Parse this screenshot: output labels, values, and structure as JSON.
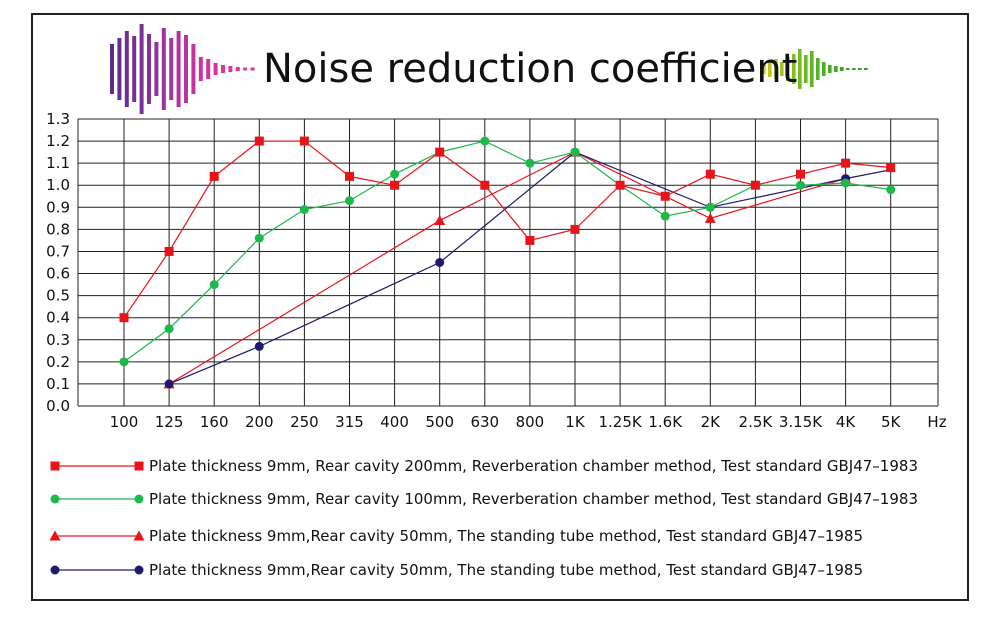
{
  "chart_data": {
    "type": "line",
    "title": "Noise reduction coefficient",
    "xlabel": "Hz",
    "ylabel": "",
    "categories": [
      "100",
      "125",
      "160",
      "200",
      "250",
      "315",
      "400",
      "500",
      "630",
      "800",
      "1K",
      "1.25K",
      "1.6K",
      "2K",
      "2.5K",
      "3.15K",
      "4K",
      "5K"
    ],
    "ylim": [
      0,
      1.3
    ],
    "yticks": [
      "0.0",
      "0.1",
      "0.2",
      "0.3",
      "0.4",
      "0.5",
      "0.6",
      "0.7",
      "0.8",
      "0.9",
      "1.0",
      "1.1",
      "1.2",
      "1.3"
    ],
    "grid": true,
    "legend_position": "bottom",
    "series": [
      {
        "name": "Plate thickness 9mm, Rear cavity 200mm, Reverberation chamber method, Test standard GBJ47–1983",
        "color": "#e8141a",
        "marker": "square",
        "values": [
          0.4,
          0.7,
          1.04,
          1.2,
          1.2,
          1.04,
          1.0,
          1.15,
          1.0,
          0.75,
          0.8,
          1.0,
          0.95,
          1.05,
          1.0,
          1.05,
          1.1,
          1.08
        ]
      },
      {
        "name": "Plate thickness 9mm, Rear cavity 100mm, Reverberation chamber method, Test standard GBJ47–1983",
        "color": "#1db94b",
        "marker": "circle",
        "values": [
          0.2,
          0.35,
          0.55,
          0.76,
          0.89,
          0.93,
          1.05,
          1.15,
          1.2,
          1.1,
          1.15,
          1.0,
          0.86,
          0.9,
          1.0,
          1.0,
          1.01,
          0.98
        ]
      },
      {
        "name": "Plate thickness 9mm,Rear cavity 50mm, The standing tube method, Test standard GBJ47–1985",
        "color": "#e8141a",
        "marker": "triangle",
        "x": [
          "125",
          "500",
          "1K",
          "2K",
          "4K"
        ],
        "values": [
          0.1,
          0.84,
          1.15,
          0.85,
          1.03
        ]
      },
      {
        "name": "Plate thickness 9mm,Rear cavity 50mm, The standing tube method, Test standard GBJ47–1985",
        "color": "#1f1a6e",
        "marker": "circle",
        "x": [
          "125",
          "200",
          "500",
          "1K",
          "2K",
          "4K",
          "5K"
        ],
        "values": [
          0.1,
          0.27,
          0.65,
          1.15,
          0.9,
          1.03,
          1.07
        ],
        "hidden_markers": [
          "5K"
        ]
      }
    ]
  }
}
